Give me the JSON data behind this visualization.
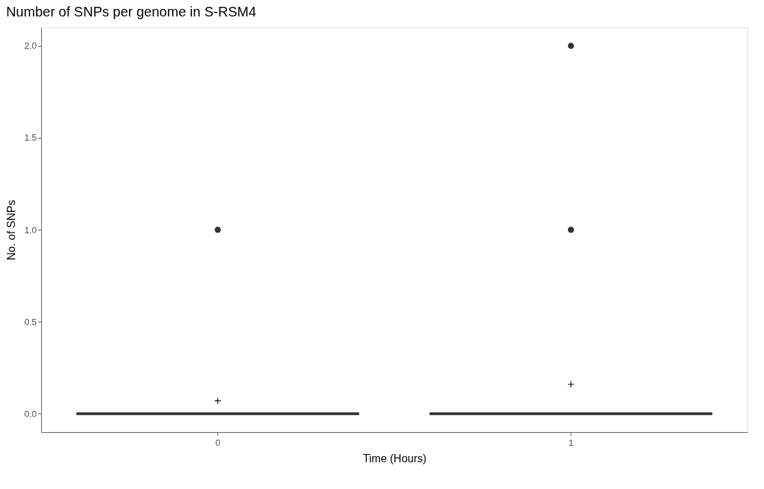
{
  "chart_data": {
    "type": "box",
    "title": "Number of SNPs per genome in S-RSM4",
    "xlabel": "Time (Hours)",
    "ylabel": "No. of SNPs",
    "categories": [
      "0",
      "1"
    ],
    "boxes": [
      {
        "low": 0,
        "q1": 0,
        "median": 0,
        "q3": 0,
        "high": 0,
        "mean": 0.07,
        "outliers": [
          1
        ]
      },
      {
        "low": 0,
        "q1": 0,
        "median": 0,
        "q3": 0,
        "high": 0,
        "mean": 0.16,
        "outliers": [
          1,
          2
        ]
      }
    ],
    "color": "#333333",
    "ylim": [
      -0.1,
      2.1
    ],
    "yticks": [
      {
        "value": 0,
        "label": "0.0"
      },
      {
        "value": 0.5,
        "label": "0.5"
      },
      {
        "value": 1,
        "label": "1.0"
      },
      {
        "value": 1.5,
        "label": "1.5"
      },
      {
        "value": 2,
        "label": "2.0"
      }
    ],
    "grid": false,
    "marker": "circle"
  }
}
